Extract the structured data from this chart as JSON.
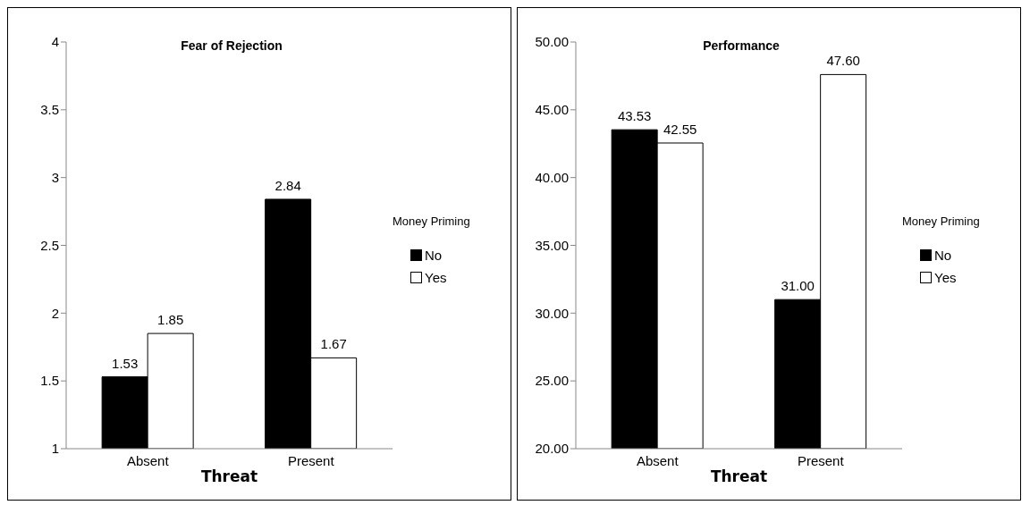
{
  "chart_data": [
    {
      "type": "bar",
      "title": "Fear of Rejection",
      "xlabel": "Threat",
      "legend_title": "Money Priming",
      "categories": [
        "Absent",
        "Present"
      ],
      "series": [
        {
          "name": "No",
          "color": "#000000",
          "values": [
            1.53,
            2.84
          ]
        },
        {
          "name": "Yes",
          "color": "#ffffff",
          "values": [
            1.85,
            1.67
          ]
        }
      ],
      "ylim": [
        1,
        4
      ],
      "yticks": [
        1,
        1.5,
        2,
        2.5,
        3,
        3.5,
        4
      ],
      "data_labels": true,
      "legend": "right",
      "grid": false
    },
    {
      "type": "bar",
      "title": "Performance",
      "xlabel": "Threat",
      "legend_title": "Money Priming",
      "categories": [
        "Absent",
        "Present"
      ],
      "series": [
        {
          "name": "No",
          "color": "#000000",
          "values": [
            43.53,
            31.0
          ],
          "value_labels": [
            "43.53",
            "31.00"
          ]
        },
        {
          "name": "Yes",
          "color": "#ffffff",
          "values": [
            42.55,
            47.6
          ],
          "value_labels": [
            "42.55",
            "47.60"
          ]
        }
      ],
      "ylim": [
        20,
        50
      ],
      "yticks": [
        {
          "value": 20,
          "label": "20.00"
        },
        {
          "value": 25,
          "label": "25.00"
        },
        {
          "value": 30,
          "label": "30.00"
        },
        {
          "value": 35,
          "label": "35.00"
        },
        {
          "value": 40,
          "label": "40.00"
        },
        {
          "value": 45,
          "label": "45.00"
        },
        {
          "value": 50,
          "label": "50.00"
        }
      ],
      "legend": "right",
      "grid": false
    }
  ]
}
